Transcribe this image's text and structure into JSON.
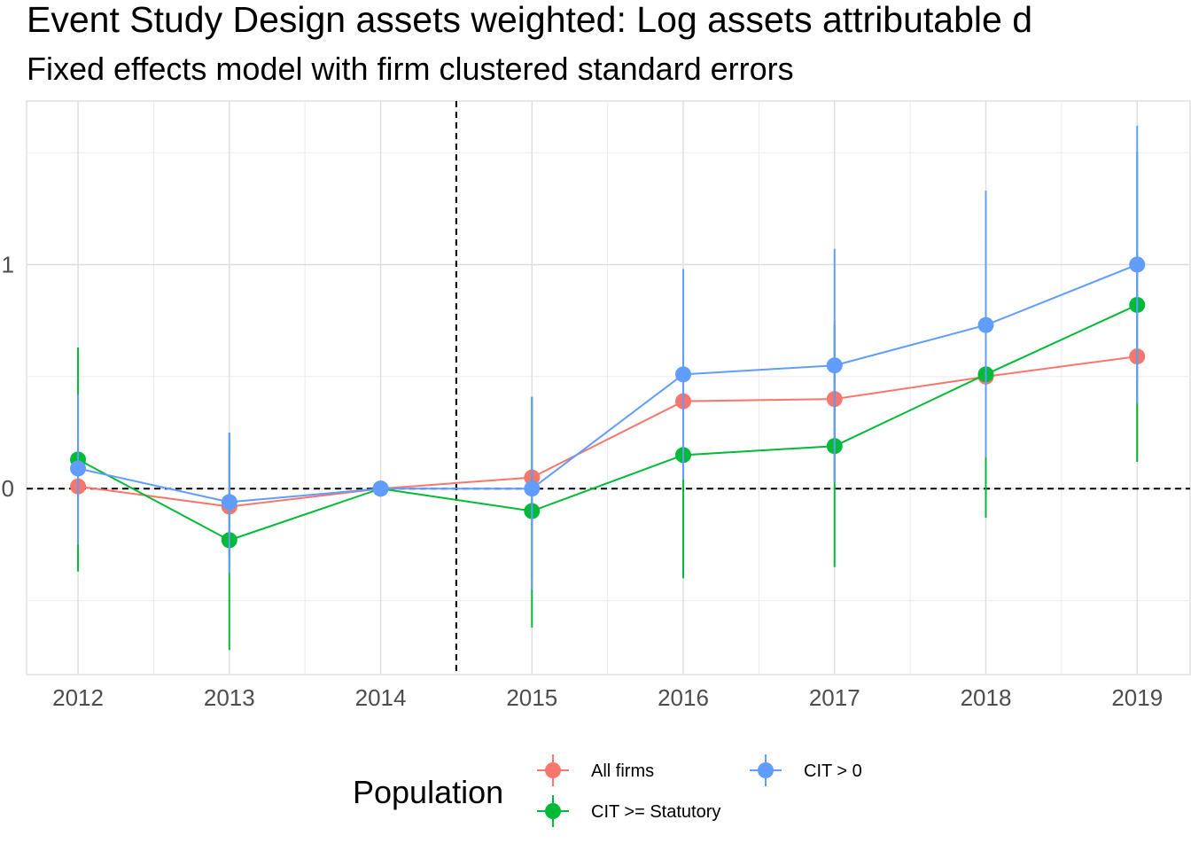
{
  "chart_data": {
    "type": "line",
    "title": "Event Study Design assets weighted: Log assets attributable d",
    "subtitle": "Fixed effects model with firm clustered standard errors",
    "xlabel": "",
    "ylabel": "",
    "x": [
      2012,
      2013,
      2014,
      2015,
      2016,
      2017,
      2018,
      2019
    ],
    "xlim": [
      2011.66,
      2019.35
    ],
    "ylim": [
      -0.83,
      1.73
    ],
    "y_ticks": [
      0,
      1
    ],
    "y_tick_labels": [
      "0",
      "1"
    ],
    "x_tick_labels": [
      "2012",
      "2013",
      "2014",
      "2015",
      "2016",
      "2017",
      "2018",
      "2019"
    ],
    "grid": true,
    "reference_lines": {
      "vertical_x": 2014.5,
      "horizontal_y": 0,
      "style": "dashed"
    },
    "legend": {
      "title": "Population",
      "position": "bottom"
    },
    "series": [
      {
        "name": "All firms",
        "color": "#F8766D",
        "values": [
          0.01,
          -0.08,
          0.0,
          0.05,
          0.39,
          0.4,
          0.5,
          0.59
        ],
        "lower": [
          -0.24,
          -0.31,
          0.0,
          -0.4,
          0.03,
          0.04,
          0.15,
          0.12
        ],
        "upper": [
          0.25,
          0.16,
          0.0,
          0.4,
          0.75,
          0.75,
          0.85,
          1.06
        ]
      },
      {
        "name": "CIT >= Statutory",
        "color": "#00BA38",
        "values": [
          0.13,
          -0.23,
          0.0,
          -0.1,
          0.15,
          0.19,
          0.51,
          0.82
        ],
        "lower": [
          -0.37,
          -0.72,
          0.0,
          -0.62,
          -0.4,
          -0.35,
          -0.13,
          0.12
        ],
        "upper": [
          0.63,
          0.25,
          0.0,
          0.41,
          0.69,
          0.73,
          1.15,
          1.5
        ]
      },
      {
        "name": "CIT > 0",
        "color": "#619CFF",
        "values": [
          0.09,
          -0.06,
          0.0,
          0.0,
          0.51,
          0.55,
          0.73,
          1.0
        ],
        "lower": [
          -0.25,
          -0.38,
          0.0,
          -0.45,
          0.04,
          0.03,
          0.14,
          0.38
        ],
        "upper": [
          0.42,
          0.25,
          0.0,
          0.41,
          0.98,
          1.07,
          1.33,
          1.62
        ]
      }
    ]
  }
}
